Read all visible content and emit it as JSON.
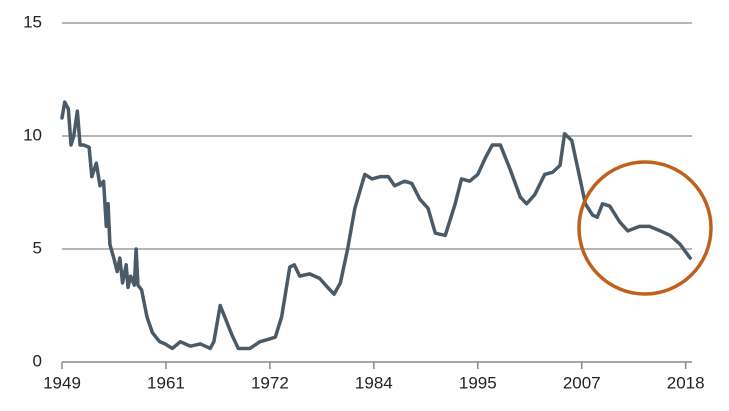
{
  "chart_data": {
    "type": "line",
    "x": [
      1949.0,
      1949.3,
      1949.7,
      1950.0,
      1950.3,
      1950.7,
      1951.0,
      1951.4,
      1952.0,
      1952.3,
      1952.8,
      1953.2,
      1953.6,
      1953.9,
      1954.1,
      1954.3,
      1954.8,
      1955.1,
      1955.4,
      1955.7,
      1956.1,
      1956.3,
      1956.6,
      1957.0,
      1957.2,
      1957.4,
      1957.8,
      1958.4,
      1959.0,
      1959.8,
      1960.4,
      1961.2,
      1962.1,
      1963.2,
      1964.3,
      1965.4,
      1965.8,
      1966.5,
      1967.0,
      1967.8,
      1968.5,
      1969.8,
      1970.9,
      1971.8,
      1972.6,
      1973.3,
      1974.2,
      1974.7,
      1975.3,
      1976.4,
      1977.5,
      1978.4,
      1979.1,
      1979.8,
      1980.6,
      1981.4,
      1982.5,
      1983.3,
      1984.2,
      1985.1,
      1985.8,
      1986.9,
      1987.7,
      1988.6,
      1989.5,
      1990.3,
      1991.4,
      1992.5,
      1993.2,
      1994.1,
      1995.0,
      1995.8,
      1996.6,
      1997.5,
      1998.6,
      1999.7,
      2000.4,
      2001.3,
      2002.4,
      2003.3,
      2004.1,
      2004.6,
      2005.4,
      2006.1,
      2006.9,
      2007.7,
      2008.2,
      2008.8,
      2009.6,
      2010.7,
      2011.6,
      2012.9,
      2014.0,
      2015.2,
      2016.3,
      2017.4,
      2018.5
    ],
    "series": [
      {
        "color": "#4a5a66",
        "values": [
          10.8,
          11.5,
          11.2,
          9.6,
          10.0,
          11.1,
          9.6,
          9.6,
          9.5,
          8.2,
          8.8,
          7.8,
          8.0,
          6.0,
          7.0,
          5.2,
          4.5,
          4.0,
          4.6,
          3.5,
          4.3,
          3.3,
          3.8,
          3.4,
          5.0,
          3.4,
          3.2,
          2.0,
          1.3,
          0.9,
          0.8,
          0.6,
          0.9,
          0.7,
          0.8,
          0.6,
          0.9,
          2.5,
          2.0,
          1.2,
          0.6,
          0.6,
          0.9,
          1.0,
          1.1,
          2.0,
          4.2,
          4.3,
          3.8,
          3.9,
          3.7,
          3.3,
          3.0,
          3.5,
          5.0,
          6.8,
          8.3,
          8.1,
          8.2,
          8.2,
          7.8,
          8.0,
          7.9,
          7.2,
          6.8,
          5.7,
          5.6,
          7.0,
          8.1,
          8.0,
          8.3,
          9.0,
          9.6,
          9.6,
          8.5,
          7.3,
          7.0,
          7.4,
          8.3,
          8.4,
          8.7,
          10.1,
          9.8,
          8.5,
          7.0,
          6.5,
          6.4,
          7.0,
          6.9,
          6.2,
          5.8,
          6.0,
          6.0,
          5.8,
          5.6,
          5.2,
          4.6
        ]
      }
    ],
    "xlim": [
      1949,
      2018.7
    ],
    "xticks": [
      1949,
      {
        "value": 1960.5,
        "label": "1961"
      },
      1972,
      {
        "value": 1983.5,
        "label": "1984"
      },
      1995,
      {
        "value": 2006.5,
        "label": "2007"
      },
      2018
    ],
    "ylim": [
      0,
      15
    ],
    "yticks": [
      0,
      5,
      10,
      15
    ],
    "grid": true
  }
}
